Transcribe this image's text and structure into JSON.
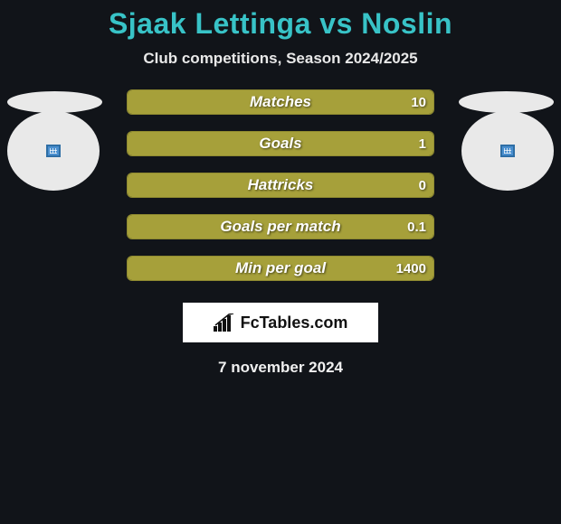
{
  "title": "Sjaak Lettinga vs Noslin",
  "subtitle": "Club competitions, Season 2024/2025",
  "bar_color_fill": "#a6a03a",
  "bar_color_border": "#8f8a30",
  "background_color": "#111419",
  "title_color": "#38c3c7",
  "text_color": "#e8e8e8",
  "ellipse_color": "#e9e9e9",
  "rows": [
    {
      "label": "Matches",
      "left": "",
      "right": "10",
      "left_ellipse": "flat",
      "right_ellipse": "flat"
    },
    {
      "label": "Goals",
      "left": "",
      "right": "1",
      "left_ellipse": "round",
      "right_ellipse": "round"
    },
    {
      "label": "Hattricks",
      "left": "",
      "right": "0",
      "left_ellipse": "none",
      "right_ellipse": "none"
    },
    {
      "label": "Goals per match",
      "left": "",
      "right": "0.1",
      "left_ellipse": "none",
      "right_ellipse": "none"
    },
    {
      "label": "Min per goal",
      "left": "",
      "right": "1400",
      "left_ellipse": "none",
      "right_ellipse": "none"
    }
  ],
  "logo_text": "FcTables.com",
  "date": "7 november 2024"
}
